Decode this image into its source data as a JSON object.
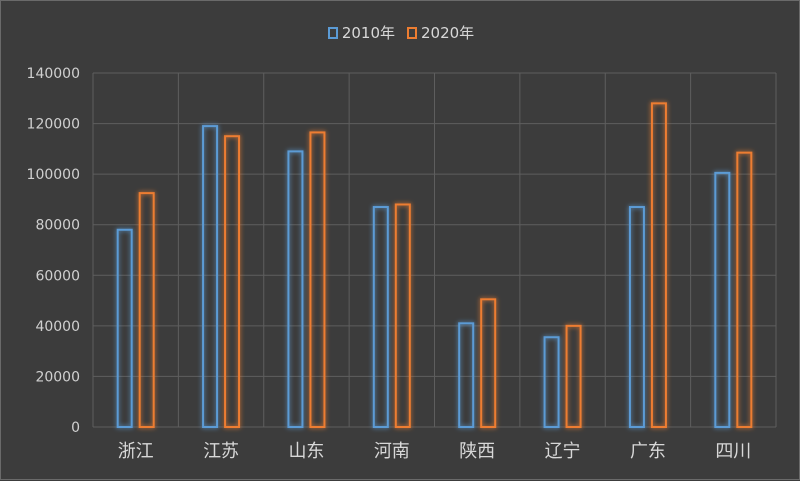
{
  "chart_data": {
    "type": "bar",
    "categories": [
      "浙江",
      "江苏",
      "山东",
      "河南",
      "陕西",
      "辽宁",
      "广东",
      "四川"
    ],
    "series": [
      {
        "name": "2010年",
        "values": [
          78000,
          119000,
          109000,
          87000,
          41000,
          35500,
          87000,
          100500
        ],
        "color": "#5b9bd5"
      },
      {
        "name": "2020年",
        "values": [
          92500,
          115000,
          116500,
          88000,
          50500,
          40000,
          128000,
          108500
        ],
        "color": "#ed7d31"
      }
    ],
    "yticks": [
      "0",
      "20000",
      "40000",
      "60000",
      "80000",
      "100000",
      "120000",
      "140000"
    ],
    "ylim": [
      0,
      140000
    ],
    "grid": true,
    "legend_position": "top"
  }
}
